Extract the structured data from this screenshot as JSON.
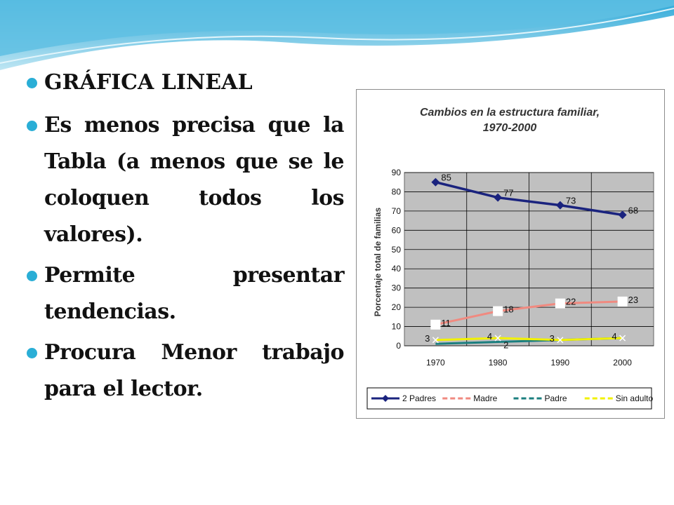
{
  "slide": {
    "bullets": [
      "GRÁFICA LINEAL",
      "Es menos precisa que la Tabla (a menos que se le coloquen todos los valores).",
      "Permite presentar tendencias.",
      "Procura Menor trabajo para el lector."
    ]
  },
  "colors": {
    "bullet": "#2aaed6",
    "wave": "#7ccde6",
    "plot_bg": "#c0c0c0",
    "series": [
      "#1a237e",
      "#f08a80",
      "#1b7f7f",
      "#f2f200"
    ]
  },
  "chart_data": {
    "type": "line",
    "title": "Cambios en la estructura familiar,",
    "subtitle": "1970-2000",
    "xlabel": "",
    "ylabel": "Porcentaje total de familias",
    "categories": [
      "1970",
      "1980",
      "1990",
      "2000"
    ],
    "ylim": [
      0,
      90
    ],
    "yticks": [
      "0",
      "10",
      "20",
      "30",
      "40",
      "50",
      "60",
      "70",
      "80",
      "90"
    ],
    "grid": true,
    "legend_position": "bottom",
    "series": [
      {
        "name": "2 Padres",
        "values": [
          85,
          77,
          73,
          68
        ],
        "labels": [
          "85",
          "77",
          "73",
          "68"
        ],
        "marker": "diamond"
      },
      {
        "name": "Madre",
        "values": [
          11,
          18,
          22,
          23
        ],
        "labels": [
          "11",
          "18",
          "22",
          "23"
        ],
        "marker": "square"
      },
      {
        "name": "Padre",
        "values": [
          1,
          2,
          3,
          4
        ],
        "labels": [
          "",
          "2",
          "",
          ""
        ],
        "marker": "none"
      },
      {
        "name": "Sin adulto",
        "values": [
          3,
          4,
          3,
          4
        ],
        "labels": [
          "3",
          "4",
          "3",
          "4"
        ],
        "marker": "x"
      }
    ]
  }
}
